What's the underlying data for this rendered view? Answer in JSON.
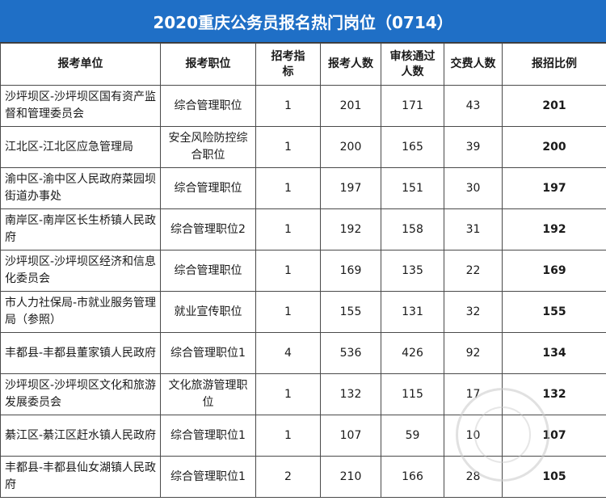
{
  "title": "2020重庆公务员报名热门岗位（0714）",
  "headers": [
    "报考单位",
    "报考职位",
    "招考指标",
    "报考人数",
    "审核通过人数",
    "交费人数",
    "报招比例"
  ],
  "rows": [
    [
      "沙坪坝区-沙坪坝区国有资产监督和管理委员会",
      "综合管理职位",
      "1",
      "201",
      "171",
      "43",
      "201"
    ],
    [
      "江北区-江北区应急管理局",
      "安全风险防控综合职位",
      "1",
      "200",
      "165",
      "39",
      "200"
    ],
    [
      "渝中区-渝中区人民政府菜园坝街道办事处",
      "综合管理职位",
      "1",
      "197",
      "151",
      "30",
      "197"
    ],
    [
      "南岸区-南岸区长生桥镇人民政府",
      "综合管理职位2",
      "1",
      "192",
      "158",
      "31",
      "192"
    ],
    [
      "沙坪坝区-沙坪坝区经济和信息化委员会",
      "综合管理职位",
      "1",
      "169",
      "135",
      "22",
      "169"
    ],
    [
      "市人力社保局-市就业服务管理局（参照）",
      "就业宣传职位",
      "1",
      "155",
      "131",
      "32",
      "155"
    ],
    [
      "丰都县-丰都县董家镇人民政府",
      "综合管理职位1",
      "4",
      "536",
      "426",
      "92",
      "134"
    ],
    [
      "沙坪坝区-沙坪坝区文化和旅游发展委员会",
      "文化旅游管理职位",
      "1",
      "132",
      "115",
      "17",
      "132"
    ],
    [
      "綦江区-綦江区赶水镇人民政府",
      "综合管理职位1",
      "1",
      "107",
      "59",
      "10",
      "107"
    ],
    [
      "丰都县-丰都县仙女湖镇人民政府",
      "综合管理职位1",
      "2",
      "210",
      "166",
      "28",
      "105"
    ]
  ]
}
